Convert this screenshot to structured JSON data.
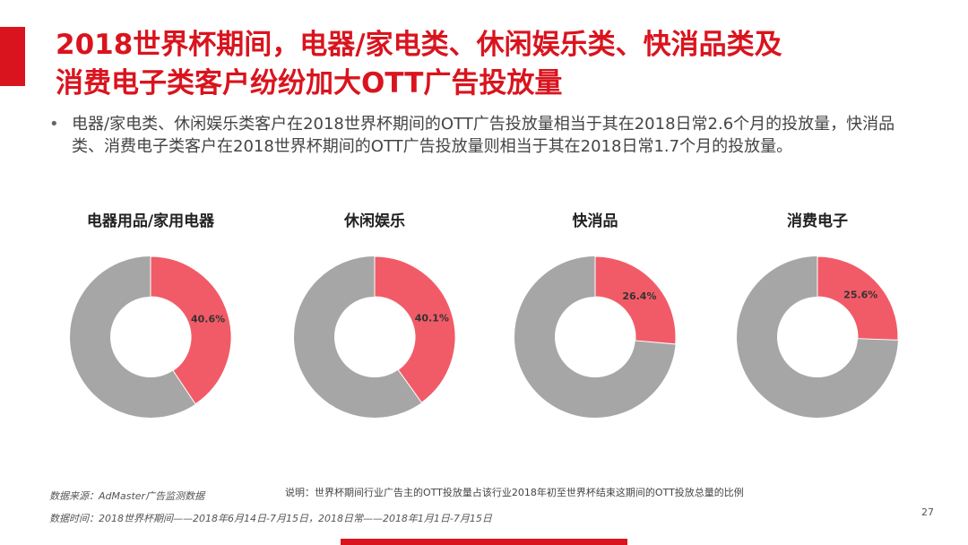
{
  "header": {
    "title_lines": [
      "2018世界杯期间，电器/家电类、休闲娱乐类、快消品类及",
      "消费电子类客户纷纷加大OTT广告投放量"
    ]
  },
  "bullet": "电器/家电类、休闲娱乐类客户在2018世界杯期间的OTT广告投放量相当于其在2018日常2.6个月的投放量，快消品类、消费电子类客户在2018世界杯期间的OTT广告投放量则相当于其在2018日常1.7个月的投放量。",
  "chart_data": [
    {
      "type": "pie",
      "title": "电器用品/家用电器",
      "values": [
        40.6
      ],
      "value_labels": [
        "40.6%"
      ],
      "color": "#f15b67",
      "rest_color": "#a6a6a6"
    },
    {
      "type": "pie",
      "title": "休闲娱乐",
      "values": [
        40.1
      ],
      "value_labels": [
        "40.1%"
      ],
      "color": "#f15b67",
      "rest_color": "#a6a6a6"
    },
    {
      "type": "pie",
      "title": "快消品",
      "values": [
        26.4
      ],
      "value_labels": [
        "26.4%"
      ],
      "color": "#f15b67",
      "rest_color": "#a6a6a6"
    },
    {
      "type": "pie",
      "title": "消费电子",
      "values": [
        25.6
      ],
      "value_labels": [
        "25.6%"
      ],
      "color": "#f15b67",
      "rest_color": "#a6a6a6"
    }
  ],
  "footer": {
    "source": "数据来源：AdMaster广告监测数据",
    "period": "数据时间：2018世界杯期间——2018年6月14日-7月15日，2018日常——2018年1月1日-7月15日",
    "note": "说明：世界杯期间行业广告主的OTT投放量占该行业2018年初至世界杯结束这期间的OTT投放总量的比例",
    "page": "27"
  }
}
